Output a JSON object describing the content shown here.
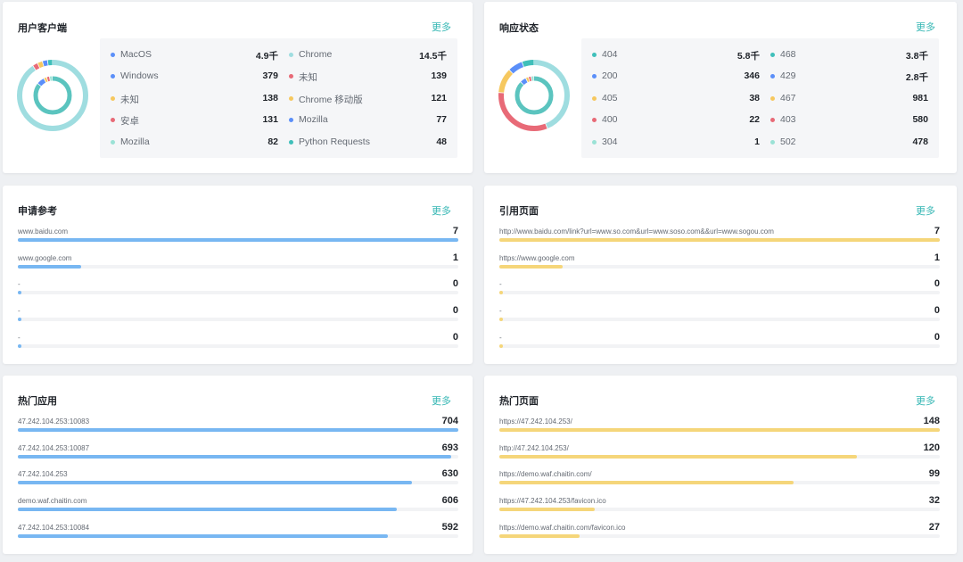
{
  "colors": {
    "accent": "#36b7b4",
    "blue_bar": "#78b7f2",
    "yellow_bar": "#f5d67a",
    "track": "#f2f3f5"
  },
  "user_agents": {
    "title": "用户客户端",
    "more": "更多",
    "left": [
      {
        "name": "MacOS",
        "value": "4.9千",
        "color": "#5b8ff9"
      },
      {
        "name": "Windows",
        "value": "379",
        "color": "#5b8ff9"
      },
      {
        "name": "未知",
        "value": "138",
        "color": "#f6c85f"
      },
      {
        "name": "安卓",
        "value": "131",
        "color": "#e86a77"
      },
      {
        "name": "Mozilla",
        "value": "82",
        "color": "#9be2d6"
      }
    ],
    "right": [
      {
        "name": "Chrome",
        "value": "14.5千",
        "color": "#9fdde0"
      },
      {
        "name": "未知",
        "value": "139",
        "color": "#e86a77"
      },
      {
        "name": "Chrome 移动版",
        "value": "121",
        "color": "#f6c85f"
      },
      {
        "name": "Mozilla",
        "value": "77",
        "color": "#5b8ff9"
      },
      {
        "name": "Python Requests",
        "value": "48",
        "color": "#3fbfba"
      }
    ],
    "outer_ring": [
      {
        "value": 14500,
        "color": "#9fdde0"
      },
      {
        "value": 139,
        "color": "#e86a77"
      },
      {
        "value": 121,
        "color": "#f6c85f"
      },
      {
        "value": 77,
        "color": "#5b8ff9"
      },
      {
        "value": 48,
        "color": "#3fbfba"
      }
    ],
    "inner_ring": [
      {
        "value": 4900,
        "color": "#5bc4bf"
      },
      {
        "value": 379,
        "color": "#5b8ff9"
      },
      {
        "value": 138,
        "color": "#f6c85f"
      },
      {
        "value": 131,
        "color": "#e86a77"
      },
      {
        "value": 82,
        "color": "#9be2d6"
      }
    ]
  },
  "status": {
    "title": "响应状态",
    "more": "更多",
    "left": [
      {
        "name": "404",
        "value": "5.8千",
        "color": "#3fbfba"
      },
      {
        "name": "200",
        "value": "346",
        "color": "#5b8ff9"
      },
      {
        "name": "405",
        "value": "38",
        "color": "#f6c85f"
      },
      {
        "name": "400",
        "value": "22",
        "color": "#e86a77"
      },
      {
        "name": "304",
        "value": "1",
        "color": "#9be2d6"
      }
    ],
    "right": [
      {
        "name": "468",
        "value": "3.8千",
        "color": "#3fbfba"
      },
      {
        "name": "429",
        "value": "2.8千",
        "color": "#5b8ff9"
      },
      {
        "name": "467",
        "value": "981",
        "color": "#f6c85f"
      },
      {
        "name": "403",
        "value": "580",
        "color": "#e86a77"
      },
      {
        "name": "502",
        "value": "478",
        "color": "#9be2d6"
      }
    ],
    "outer_ring": [
      {
        "value": 3800,
        "color": "#9fdde0"
      },
      {
        "value": 2800,
        "color": "#e86a77"
      },
      {
        "value": 981,
        "color": "#f6c85f"
      },
      {
        "value": 580,
        "color": "#5b8ff9"
      },
      {
        "value": 478,
        "color": "#3fbfba"
      }
    ],
    "inner_ring": [
      {
        "value": 5800,
        "color": "#5bc4bf"
      },
      {
        "value": 346,
        "color": "#5b8ff9"
      },
      {
        "value": 38,
        "color": "#f6c85f"
      },
      {
        "value": 22,
        "color": "#e86a77"
      },
      {
        "value": 1,
        "color": "#9be2d6"
      }
    ]
  },
  "referrers": {
    "title": "申请参考",
    "more": "更多",
    "max": 7,
    "items": [
      {
        "label": "www.baidu.com",
        "value": 7
      },
      {
        "label": "www.google.com",
        "value": 1
      },
      {
        "label": "-",
        "value": 0
      },
      {
        "label": "-",
        "value": 0
      },
      {
        "label": "-",
        "value": 0
      }
    ]
  },
  "ref_pages": {
    "title": "引用页面",
    "more": "更多",
    "max": 7,
    "items": [
      {
        "label": "http://www.baidu.com/link?url=www.so.com&url=www.soso.com&&url=www.sogou.com",
        "value": 7
      },
      {
        "label": "https://www.google.com",
        "value": 1
      },
      {
        "label": "-",
        "value": 0
      },
      {
        "label": "-",
        "value": 0
      },
      {
        "label": "-",
        "value": 0
      }
    ]
  },
  "hot_apps": {
    "title": "热门应用",
    "more": "更多",
    "max": 704,
    "items": [
      {
        "label": "47.242.104.253:10083",
        "value": 704
      },
      {
        "label": "47.242.104.253:10087",
        "value": 693
      },
      {
        "label": "47.242.104.253",
        "value": 630
      },
      {
        "label": "demo.waf.chaitin.com",
        "value": 606
      },
      {
        "label": "47.242.104.253:10084",
        "value": 592
      }
    ]
  },
  "hot_pages": {
    "title": "热门页面",
    "more": "更多",
    "max": 148,
    "items": [
      {
        "label": "https://47.242.104.253/",
        "value": 148
      },
      {
        "label": "http://47.242.104.253/",
        "value": 120
      },
      {
        "label": "https://demo.waf.chaitin.com/",
        "value": 99
      },
      {
        "label": "https://47.242.104.253/favicon.ico",
        "value": 32
      },
      {
        "label": "https://demo.waf.chaitin.com/favicon.ico",
        "value": 27
      }
    ]
  }
}
